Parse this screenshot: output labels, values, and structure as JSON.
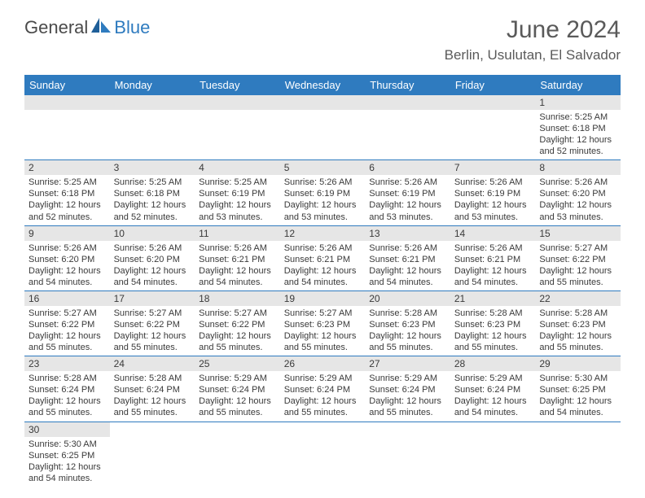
{
  "brand": {
    "general": "General",
    "blue": "Blue"
  },
  "title": "June 2024",
  "location": "Berlin, Usulutan, El Salvador",
  "colors": {
    "header_bg": "#2f7bbf",
    "header_text": "#ffffff",
    "daynum_bg": "#e6e6e6",
    "border": "#2f7bbf",
    "text": "#3a3a3a",
    "brand_gray": "#4a4a4a",
    "brand_blue": "#2f7bbf"
  },
  "typography": {
    "title_fontsize": 30,
    "location_fontsize": 17,
    "weekday_fontsize": 13,
    "daynum_fontsize": 12,
    "body_fontsize": 11
  },
  "weekdays": [
    "Sunday",
    "Monday",
    "Tuesday",
    "Wednesday",
    "Thursday",
    "Friday",
    "Saturday"
  ],
  "weeks": [
    [
      null,
      null,
      null,
      null,
      null,
      null,
      {
        "n": "1",
        "sunrise": "5:25 AM",
        "sunset": "6:18 PM",
        "day_h": "12",
        "day_m": "52"
      }
    ],
    [
      {
        "n": "2",
        "sunrise": "5:25 AM",
        "sunset": "6:18 PM",
        "day_h": "12",
        "day_m": "52"
      },
      {
        "n": "3",
        "sunrise": "5:25 AM",
        "sunset": "6:18 PM",
        "day_h": "12",
        "day_m": "52"
      },
      {
        "n": "4",
        "sunrise": "5:25 AM",
        "sunset": "6:19 PM",
        "day_h": "12",
        "day_m": "53"
      },
      {
        "n": "5",
        "sunrise": "5:26 AM",
        "sunset": "6:19 PM",
        "day_h": "12",
        "day_m": "53"
      },
      {
        "n": "6",
        "sunrise": "5:26 AM",
        "sunset": "6:19 PM",
        "day_h": "12",
        "day_m": "53"
      },
      {
        "n": "7",
        "sunrise": "5:26 AM",
        "sunset": "6:19 PM",
        "day_h": "12",
        "day_m": "53"
      },
      {
        "n": "8",
        "sunrise": "5:26 AM",
        "sunset": "6:20 PM",
        "day_h": "12",
        "day_m": "53"
      }
    ],
    [
      {
        "n": "9",
        "sunrise": "5:26 AM",
        "sunset": "6:20 PM",
        "day_h": "12",
        "day_m": "54"
      },
      {
        "n": "10",
        "sunrise": "5:26 AM",
        "sunset": "6:20 PM",
        "day_h": "12",
        "day_m": "54"
      },
      {
        "n": "11",
        "sunrise": "5:26 AM",
        "sunset": "6:21 PM",
        "day_h": "12",
        "day_m": "54"
      },
      {
        "n": "12",
        "sunrise": "5:26 AM",
        "sunset": "6:21 PM",
        "day_h": "12",
        "day_m": "54"
      },
      {
        "n": "13",
        "sunrise": "5:26 AM",
        "sunset": "6:21 PM",
        "day_h": "12",
        "day_m": "54"
      },
      {
        "n": "14",
        "sunrise": "5:26 AM",
        "sunset": "6:21 PM",
        "day_h": "12",
        "day_m": "54"
      },
      {
        "n": "15",
        "sunrise": "5:27 AM",
        "sunset": "6:22 PM",
        "day_h": "12",
        "day_m": "55"
      }
    ],
    [
      {
        "n": "16",
        "sunrise": "5:27 AM",
        "sunset": "6:22 PM",
        "day_h": "12",
        "day_m": "55"
      },
      {
        "n": "17",
        "sunrise": "5:27 AM",
        "sunset": "6:22 PM",
        "day_h": "12",
        "day_m": "55"
      },
      {
        "n": "18",
        "sunrise": "5:27 AM",
        "sunset": "6:22 PM",
        "day_h": "12",
        "day_m": "55"
      },
      {
        "n": "19",
        "sunrise": "5:27 AM",
        "sunset": "6:23 PM",
        "day_h": "12",
        "day_m": "55"
      },
      {
        "n": "20",
        "sunrise": "5:28 AM",
        "sunset": "6:23 PM",
        "day_h": "12",
        "day_m": "55"
      },
      {
        "n": "21",
        "sunrise": "5:28 AM",
        "sunset": "6:23 PM",
        "day_h": "12",
        "day_m": "55"
      },
      {
        "n": "22",
        "sunrise": "5:28 AM",
        "sunset": "6:23 PM",
        "day_h": "12",
        "day_m": "55"
      }
    ],
    [
      {
        "n": "23",
        "sunrise": "5:28 AM",
        "sunset": "6:24 PM",
        "day_h": "12",
        "day_m": "55"
      },
      {
        "n": "24",
        "sunrise": "5:28 AM",
        "sunset": "6:24 PM",
        "day_h": "12",
        "day_m": "55"
      },
      {
        "n": "25",
        "sunrise": "5:29 AM",
        "sunset": "6:24 PM",
        "day_h": "12",
        "day_m": "55"
      },
      {
        "n": "26",
        "sunrise": "5:29 AM",
        "sunset": "6:24 PM",
        "day_h": "12",
        "day_m": "55"
      },
      {
        "n": "27",
        "sunrise": "5:29 AM",
        "sunset": "6:24 PM",
        "day_h": "12",
        "day_m": "55"
      },
      {
        "n": "28",
        "sunrise": "5:29 AM",
        "sunset": "6:24 PM",
        "day_h": "12",
        "day_m": "54"
      },
      {
        "n": "29",
        "sunrise": "5:30 AM",
        "sunset": "6:25 PM",
        "day_h": "12",
        "day_m": "54"
      }
    ],
    [
      {
        "n": "30",
        "sunrise": "5:30 AM",
        "sunset": "6:25 PM",
        "day_h": "12",
        "day_m": "54"
      },
      null,
      null,
      null,
      null,
      null,
      null
    ]
  ],
  "labels": {
    "sunrise": "Sunrise: ",
    "sunset": "Sunset: ",
    "daylight_pre": "Daylight: ",
    "daylight_mid": " hours and ",
    "daylight_post": " minutes."
  }
}
